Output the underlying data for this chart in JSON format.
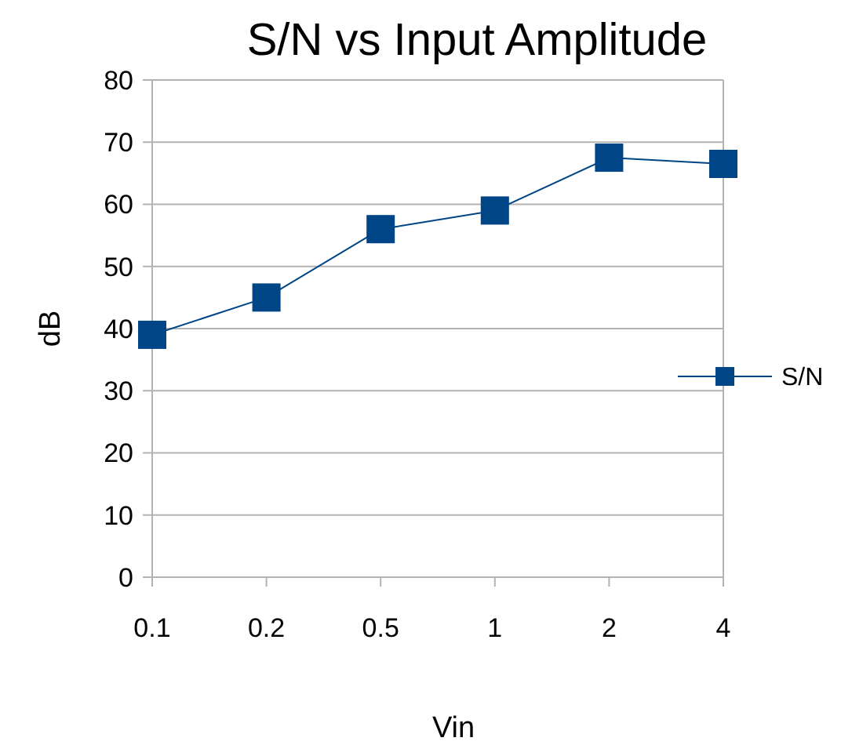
{
  "chart_data": {
    "type": "line",
    "title": "S/N vs Input Amplitude",
    "xlabel": "Vin",
    "ylabel": "dB",
    "categories": [
      "0.1",
      "0.2",
      "0.5",
      "1",
      "2",
      "4"
    ],
    "series": [
      {
        "name": "S/N",
        "color": "#004586",
        "values": [
          39,
          45,
          56,
          59,
          67.5,
          66.5
        ]
      }
    ],
    "ylim": [
      0,
      80
    ],
    "yticks": [
      0,
      10,
      20,
      30,
      40,
      50,
      60,
      70,
      80
    ],
    "grid": "y",
    "legend": "right",
    "marker": "square",
    "line_style": "solid"
  }
}
